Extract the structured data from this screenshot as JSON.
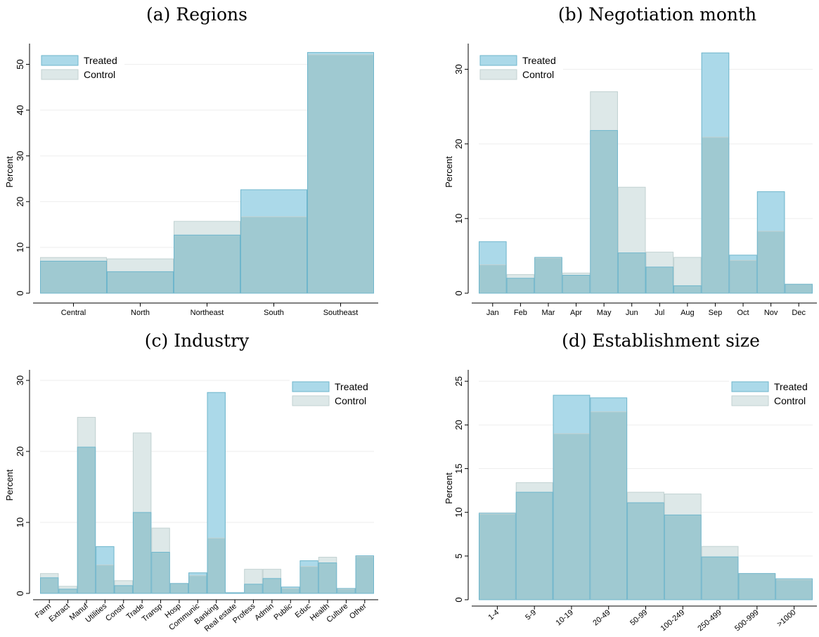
{
  "colors": {
    "treated_fill": "#abd9e9",
    "treated_stroke": "#6fb6cc",
    "control_fill": "#dde8e8",
    "control_stroke": "#c2d2d2",
    "overlap_fill": "#9fc9d1",
    "grid": "#eeeeee"
  },
  "chart_data": [
    {
      "type": "bar",
      "title": "(a) Regions",
      "ylabel": "Percent",
      "ylim": [
        0,
        53
      ],
      "yticks": [
        0,
        10,
        20,
        30,
        40,
        50
      ],
      "grid": true,
      "legend_position": "top-left",
      "categories": [
        "Central",
        "North",
        "Northeast",
        "South",
        "Southeast"
      ],
      "series": [
        {
          "name": "Treated",
          "values": [
            7.0,
            4.7,
            12.7,
            22.6,
            52.6
          ]
        },
        {
          "name": "Control",
          "values": [
            7.8,
            7.5,
            15.7,
            16.7,
            52.1
          ]
        }
      ]
    },
    {
      "type": "bar",
      "title": "(b) Negotiation month",
      "ylabel": "Percent",
      "ylim": [
        0,
        32.5
      ],
      "yticks": [
        0,
        10,
        20,
        30
      ],
      "grid": true,
      "legend_position": "top-left",
      "categories": [
        "Jan",
        "Feb",
        "Mar",
        "Apr",
        "May",
        "Jun",
        "Jul",
        "Aug",
        "Sep",
        "Oct",
        "Nov",
        "Dec"
      ],
      "series": [
        {
          "name": "Treated",
          "values": [
            6.9,
            2.0,
            4.8,
            2.4,
            21.8,
            5.4,
            3.5,
            1.0,
            32.2,
            5.1,
            13.6,
            1.2
          ]
        },
        {
          "name": "Control",
          "values": [
            3.8,
            2.5,
            4.7,
            2.7,
            27.0,
            14.2,
            5.5,
            4.8,
            20.9,
            4.4,
            8.3,
            1.2
          ]
        }
      ]
    },
    {
      "type": "bar",
      "title": "(c) Industry",
      "ylabel": "Percent",
      "ylim": [
        0,
        30.5
      ],
      "yticks": [
        0,
        10,
        20,
        30
      ],
      "grid": true,
      "legend_position": "top-right",
      "categories": [
        "Farm",
        "Extract",
        "Manuf",
        "Utilities",
        "Constr",
        "Trade",
        "Transp",
        "Hosp",
        "Communic",
        "Banking",
        "Real estate",
        "Profess",
        "Admin",
        "Public",
        "Educ",
        "Health",
        "Culture",
        "Other"
      ],
      "series": [
        {
          "name": "Treated",
          "values": [
            2.2,
            0.6,
            20.6,
            6.6,
            1.1,
            11.4,
            5.8,
            1.4,
            2.9,
            28.3,
            0.1,
            1.3,
            2.1,
            0.9,
            4.6,
            4.3,
            0.7,
            5.3
          ]
        },
        {
          "name": "Control",
          "values": [
            2.8,
            1.0,
            24.8,
            4.0,
            1.8,
            22.6,
            9.2,
            1.4,
            2.5,
            7.8,
            0.1,
            3.4,
            3.4,
            0.7,
            3.8,
            5.1,
            0.6,
            5.2
          ]
        }
      ]
    },
    {
      "type": "bar",
      "title": "(d) Establishment size",
      "ylabel": "Percent",
      "ylim": [
        0,
        25.5
      ],
      "yticks": [
        0,
        5,
        10,
        15,
        20,
        25
      ],
      "grid": true,
      "legend_position": "top-right",
      "categories": [
        "1-4",
        "5-9",
        "10-19",
        "20-49",
        "50-99",
        "100-249",
        "250-499",
        "500-999",
        ">1000"
      ],
      "series": [
        {
          "name": "Treated",
          "values": [
            9.9,
            12.3,
            23.4,
            23.1,
            11.1,
            9.7,
            4.9,
            3.0,
            2.4
          ]
        },
        {
          "name": "Control",
          "values": [
            9.8,
            13.4,
            19.0,
            21.5,
            12.3,
            12.1,
            6.1,
            3.0,
            2.3
          ]
        }
      ]
    }
  ]
}
